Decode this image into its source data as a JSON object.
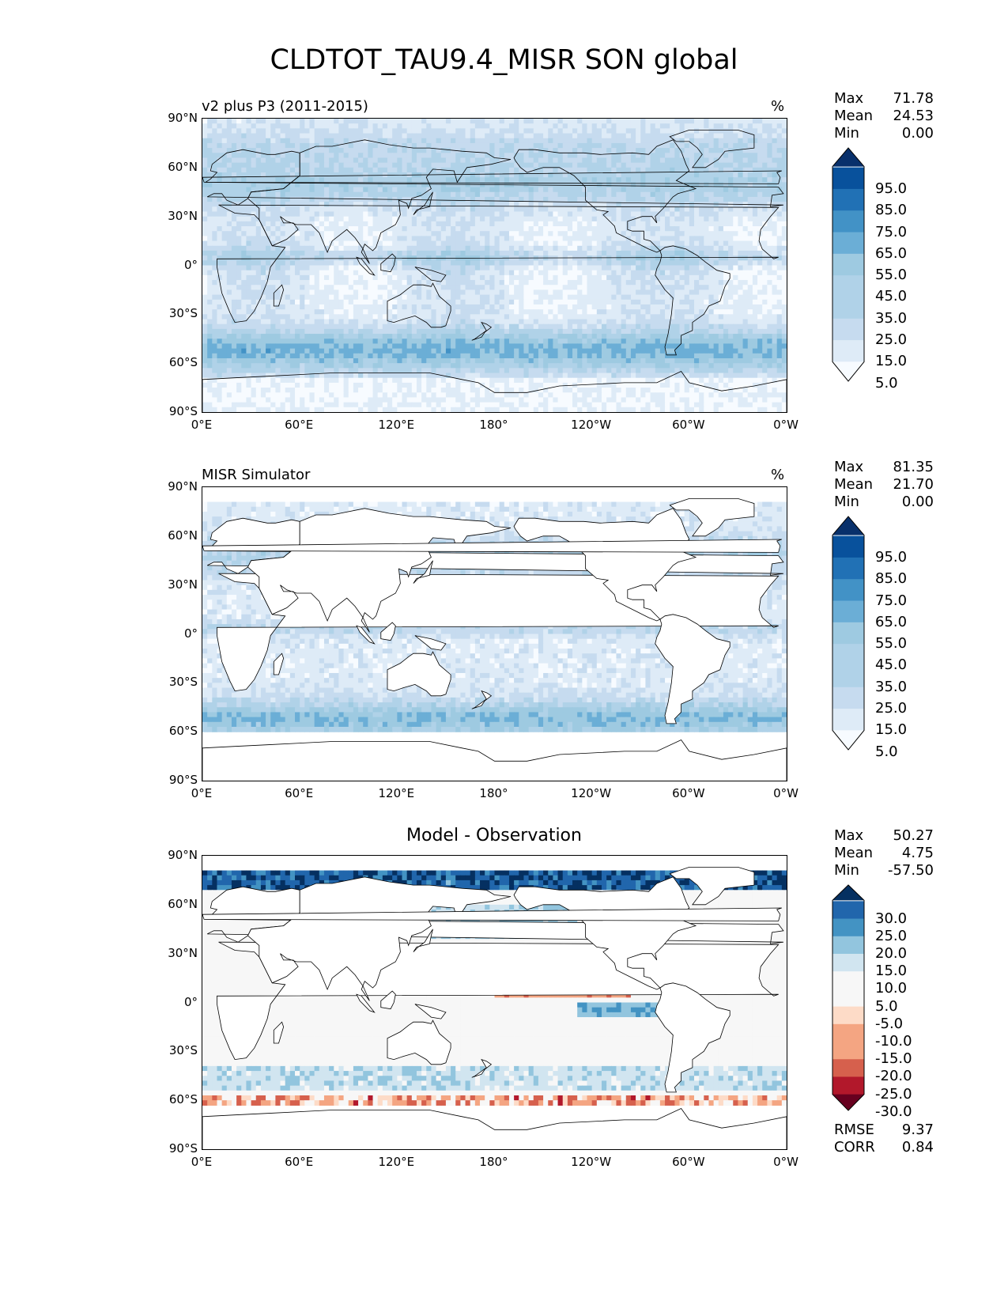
{
  "suptitle": "CLDTOT_TAU9.4_MISR SON global",
  "colors": {
    "blues": [
      "#f7fbff",
      "#deebf7",
      "#c6dbef",
      "#b0d2e8",
      "#9ecae1",
      "#6baed6",
      "#4292c6",
      "#2171b5",
      "#08519c",
      "#08306b"
    ],
    "diff": [
      "#67001f",
      "#b2182b",
      "#d6604d",
      "#f4a582",
      "#fddbc7",
      "#f7f7f7",
      "#d1e5f0",
      "#92c5de",
      "#4393c3",
      "#2166ac",
      "#053061"
    ]
  },
  "panels": [
    {
      "title": "v2 plus P3 (2011-2015)",
      "title_position": "left",
      "units": "%",
      "stats": [
        {
          "label": "Max",
          "value": "71.78"
        },
        {
          "label": "Mean",
          "value": "24.53"
        },
        {
          "label": "Min",
          "value": "0.00"
        }
      ],
      "colorbar": {
        "ticks": [
          "95.0",
          "85.0",
          "75.0",
          "65.0",
          "55.0",
          "45.0",
          "35.0",
          "25.0",
          "15.0",
          "5.0"
        ],
        "palette": "blues"
      }
    },
    {
      "title": "MISR Simulator",
      "title_position": "left",
      "units": "%",
      "stats": [
        {
          "label": "Max",
          "value": "81.35"
        },
        {
          "label": "Mean",
          "value": "21.70"
        },
        {
          "label": "Min",
          "value": "0.00"
        }
      ],
      "colorbar": {
        "ticks": [
          "95.0",
          "85.0",
          "75.0",
          "65.0",
          "55.0",
          "45.0",
          "35.0",
          "25.0",
          "15.0",
          "5.0"
        ],
        "palette": "blues"
      }
    },
    {
      "title": "Model - Observation",
      "title_position": "center",
      "units": "",
      "stats": [
        {
          "label": "Max",
          "value": "50.27"
        },
        {
          "label": "Mean",
          "value": "4.75"
        },
        {
          "label": "Min",
          "value": "-57.50"
        }
      ],
      "colorbar": {
        "ticks": [
          "30.0",
          "25.0",
          "20.0",
          "15.0",
          "10.0",
          "5.0",
          "-5.0",
          "-10.0",
          "-15.0",
          "-20.0",
          "-25.0",
          "-30.0"
        ],
        "palette": "diff"
      },
      "extra_stats": [
        {
          "label": "RMSE",
          "value": "9.37"
        },
        {
          "label": "CORR",
          "value": "0.84"
        }
      ]
    }
  ],
  "axes": {
    "y_ticks": [
      "90°N",
      "60°N",
      "30°N",
      "0°",
      "30°S",
      "60°S",
      "90°S"
    ],
    "x_ticks": [
      "0°E",
      "60°E",
      "120°E",
      "180°",
      "120°W",
      "60°W",
      "0°W"
    ]
  },
  "chart_data": [
    {
      "type": "heatmap",
      "title": "v2 plus P3 (2011-2015)",
      "units": "%",
      "xlim": [
        0,
        360
      ],
      "ylim": [
        -90,
        90
      ],
      "zlim": [
        0,
        100
      ],
      "colorbar_levels": [
        5,
        15,
        25,
        35,
        45,
        55,
        65,
        75,
        85,
        95
      ],
      "max": 71.78,
      "mean": 24.53,
      "min": 0.0,
      "zonal_mean_approx": {
        "lat": [
          80,
          60,
          45,
          30,
          15,
          0,
          -15,
          -30,
          -45,
          -55,
          -70,
          -85
        ],
        "value": [
          35,
          45,
          40,
          22,
          18,
          25,
          20,
          18,
          40,
          48,
          10,
          5
        ]
      }
    },
    {
      "type": "heatmap",
      "title": "MISR Simulator",
      "units": "%",
      "xlim": [
        0,
        360
      ],
      "ylim": [
        -90,
        90
      ],
      "zlim": [
        0,
        100
      ],
      "colorbar_levels": [
        5,
        15,
        25,
        35,
        45,
        55,
        65,
        75,
        85,
        95
      ],
      "max": 81.35,
      "mean": 21.7,
      "min": 0.0,
      "zonal_mean_approx": {
        "lat": [
          80,
          60,
          45,
          30,
          15,
          0,
          -15,
          -30,
          -45,
          -55,
          -70,
          -85
        ],
        "value": [
          15,
          28,
          32,
          20,
          15,
          22,
          20,
          22,
          38,
          45,
          0,
          0
        ]
      }
    },
    {
      "type": "heatmap",
      "title": "Model - Observation",
      "xlim": [
        0,
        360
      ],
      "ylim": [
        -90,
        90
      ],
      "zlim": [
        -30,
        30
      ],
      "colorbar_levels": [
        -30,
        -25,
        -20,
        -15,
        -10,
        -5,
        5,
        10,
        15,
        20,
        25,
        30
      ],
      "max": 50.27,
      "mean": 4.75,
      "min": -57.5,
      "rmse": 9.37,
      "corr": 0.84
    }
  ]
}
